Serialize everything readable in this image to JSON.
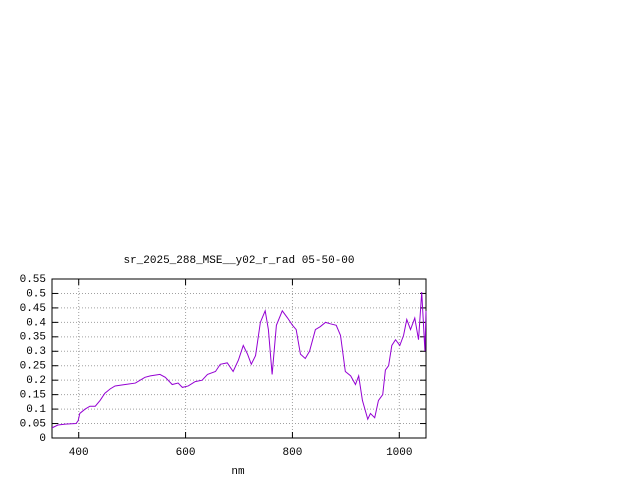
{
  "chart_data": {
    "type": "line",
    "title": "sr_2025_288_MSE__y02_r_rad 05-50-00",
    "x_label": "nm",
    "x": [
      350,
      361,
      375,
      395,
      399,
      402,
      412,
      421,
      431,
      440,
      449,
      459,
      468,
      487,
      506,
      524,
      534,
      552,
      562,
      575,
      586,
      594,
      605,
      618,
      631,
      641,
      656,
      665,
      678,
      689,
      699,
      708,
      716,
      723,
      731,
      740,
      749,
      755,
      762,
      770,
      781,
      791,
      800,
      807,
      815,
      824,
      832,
      843,
      852,
      862,
      871,
      882,
      890,
      899,
      909,
      918,
      924,
      931,
      941,
      946,
      954,
      961,
      969,
      974,
      980,
      986,
      993,
      1001,
      1008,
      1014,
      1021,
      1029,
      1036,
      1042,
      1048,
      1050
    ],
    "values": [
      0.035,
      0.045,
      0.048,
      0.05,
      0.06,
      0.085,
      0.1,
      0.11,
      0.11,
      0.13,
      0.155,
      0.17,
      0.18,
      0.185,
      0.19,
      0.21,
      0.215,
      0.22,
      0.21,
      0.185,
      0.19,
      0.175,
      0.18,
      0.195,
      0.2,
      0.22,
      0.23,
      0.255,
      0.26,
      0.23,
      0.27,
      0.32,
      0.29,
      0.255,
      0.285,
      0.4,
      0.44,
      0.375,
      0.22,
      0.39,
      0.44,
      0.415,
      0.39,
      0.375,
      0.29,
      0.275,
      0.3,
      0.375,
      0.385,
      0.4,
      0.395,
      0.39,
      0.355,
      0.23,
      0.215,
      0.185,
      0.215,
      0.13,
      0.065,
      0.085,
      0.07,
      0.13,
      0.15,
      0.235,
      0.25,
      0.32,
      0.34,
      0.32,
      0.355,
      0.41,
      0.375,
      0.415,
      0.34,
      0.505,
      0.3,
      0.44
    ],
    "color": "#9400d3",
    "xlim": [
      350,
      1050
    ],
    "xticks": [
      400,
      600,
      800,
      1000
    ],
    "ylim": [
      0,
      0.55
    ],
    "yticks": [
      0,
      0.05,
      0.1,
      0.15,
      0.2,
      0.25,
      0.3,
      0.35,
      0.4,
      0.45,
      0.5,
      0.55
    ],
    "grid": true
  }
}
